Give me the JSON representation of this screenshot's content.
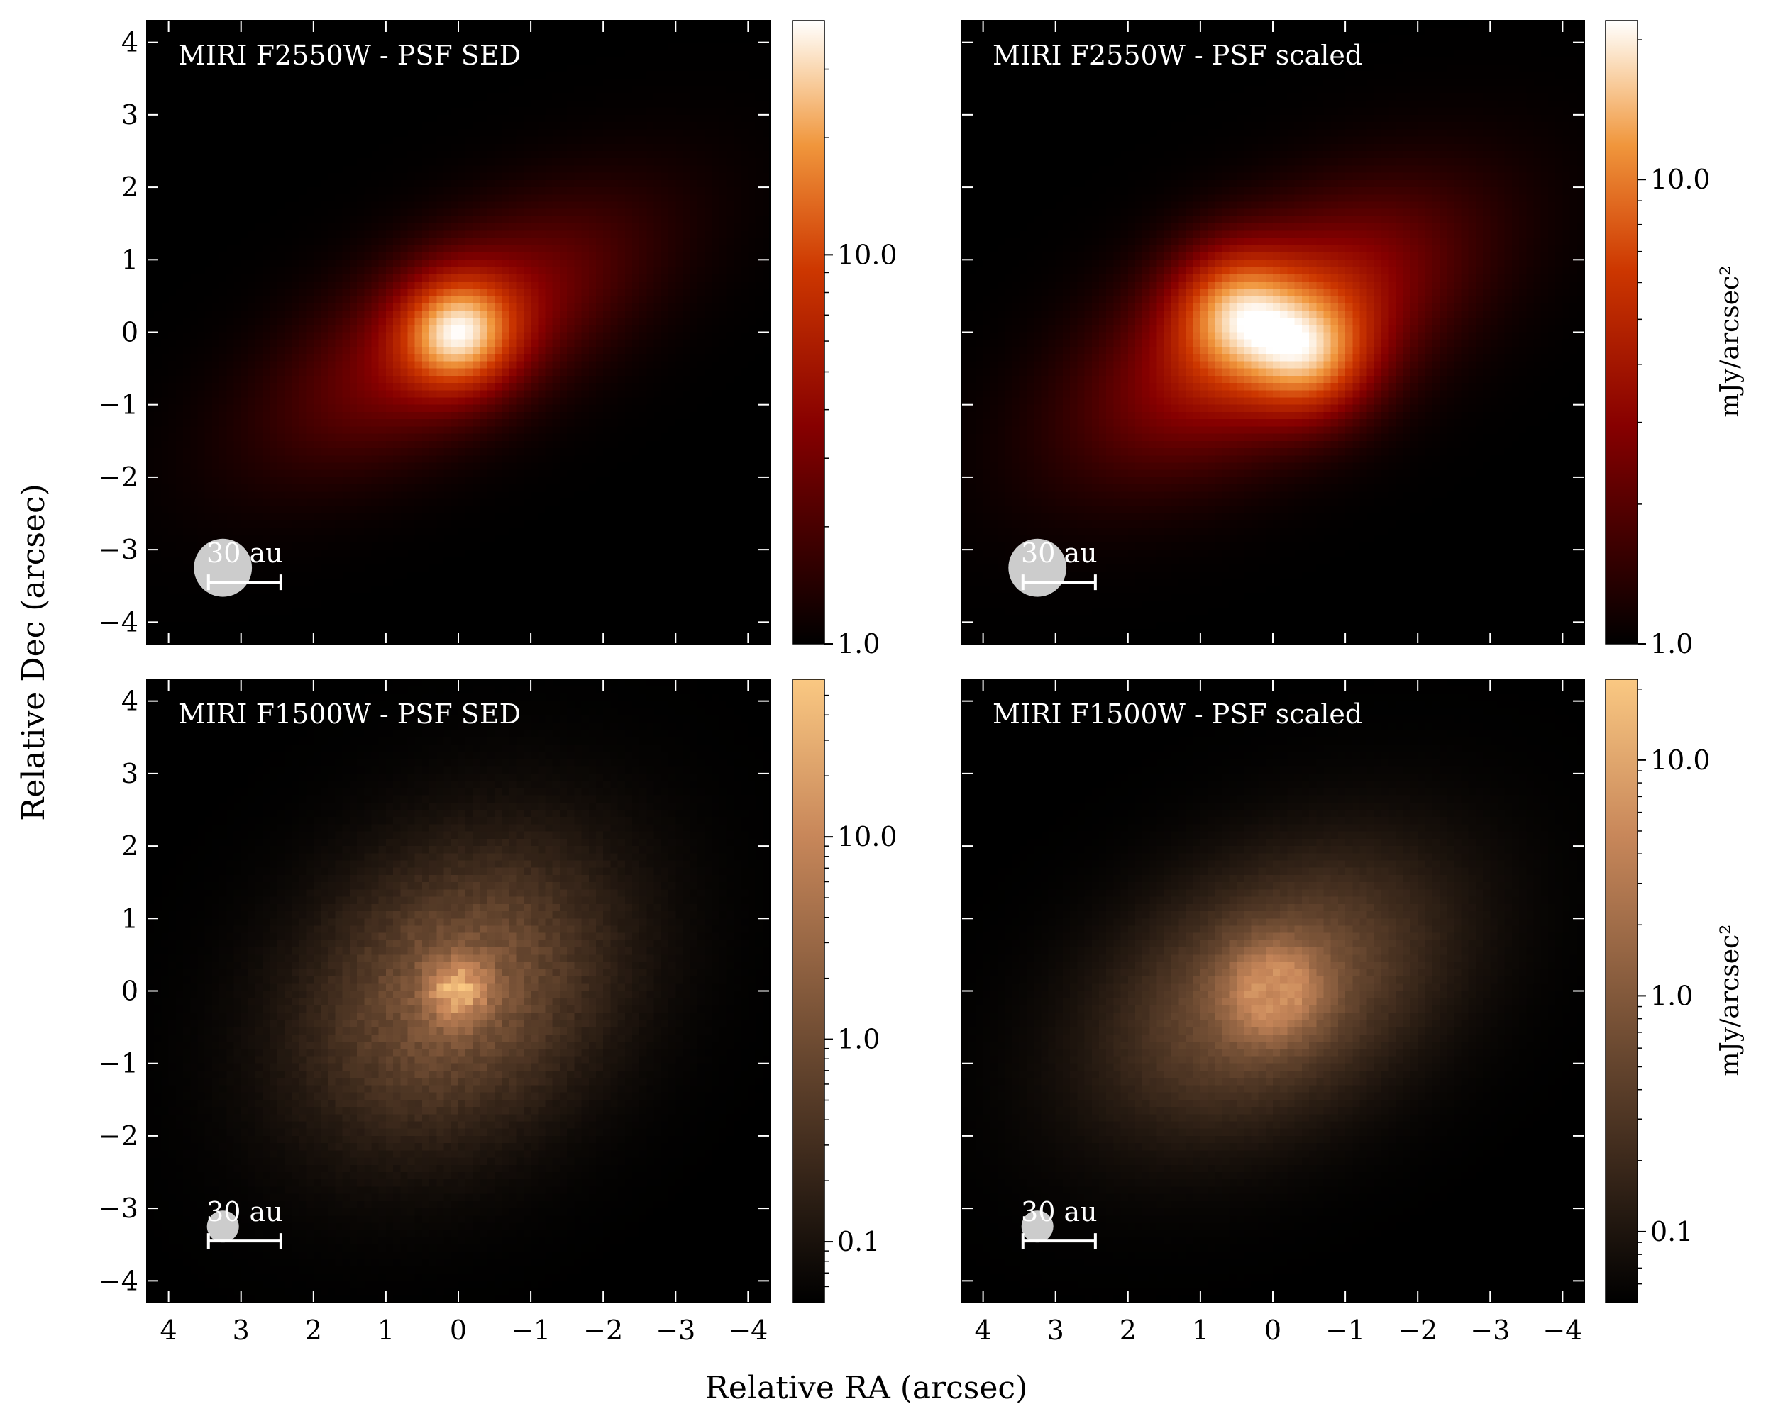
{
  "figure": {
    "xlabel": "Relative RA (arcsec)",
    "ylabel": "Relative Dec (arcsec)"
  },
  "chart_data": [
    {
      "type": "heatmap",
      "id": "f2550w-sed",
      "title": "MIRI F2550W - PSF SED",
      "xlim": [
        4.3,
        -4.3
      ],
      "ylim": [
        -4.3,
        4.3
      ],
      "xticks": [
        4,
        3,
        2,
        1,
        0,
        -1,
        -2,
        -3,
        -4
      ],
      "yticks": [
        -4,
        -3,
        -2,
        -1,
        0,
        1,
        2,
        3,
        4
      ],
      "show_xticklabels": false,
      "show_yticklabels": true,
      "colormap": "gist_heat",
      "image": {
        "disk": {
          "pa_deg": -30,
          "semi_major": 4.0,
          "semi_minor": 1.7,
          "peak": 0.4
        },
        "sources": [
          {
            "x": 0.0,
            "y": 0.0,
            "sigma": 0.55,
            "amp": 0.6
          }
        ]
      },
      "beam": {
        "x": 3.25,
        "y": -3.25,
        "radius": 0.4,
        "color": "#cccccc"
      },
      "scalebar": {
        "label": "30 au",
        "x_start": 2.45,
        "x_end": 3.45,
        "y": -3.45
      },
      "colorbar": {
        "scale": "log",
        "vmin": 1.0,
        "vmax": 40.0,
        "ticks": [
          1.0,
          10.0
        ],
        "ticklabels": [
          "1.0",
          "10.0"
        ],
        "label": ""
      }
    },
    {
      "type": "heatmap",
      "id": "f2550w-scaled",
      "title": "MIRI F2550W - PSF scaled",
      "xlim": [
        4.3,
        -4.3
      ],
      "ylim": [
        -4.3,
        4.3
      ],
      "xticks": [
        4,
        3,
        2,
        1,
        0,
        -1,
        -2,
        -3,
        -4
      ],
      "yticks": [
        -4,
        -3,
        -2,
        -1,
        0,
        1,
        2,
        3,
        4
      ],
      "show_xticklabels": false,
      "show_yticklabels": false,
      "colormap": "gist_heat",
      "image": {
        "disk": {
          "pa_deg": -30,
          "semi_major": 4.0,
          "semi_minor": 1.9,
          "peak": 0.55
        },
        "sources": [
          {
            "x": 0.55,
            "y": 0.35,
            "sigma": 0.6,
            "amp": 0.45
          },
          {
            "x": -0.55,
            "y": -0.35,
            "sigma": 0.6,
            "amp": 0.45
          }
        ]
      },
      "beam": {
        "x": 3.25,
        "y": -3.25,
        "radius": 0.4,
        "color": "#cccccc"
      },
      "scalebar": {
        "label": "30 au",
        "x_start": 2.45,
        "x_end": 3.45,
        "y": -3.45
      },
      "colorbar": {
        "scale": "log",
        "vmin": 1.0,
        "vmax": 22.0,
        "ticks": [
          1.0,
          10.0
        ],
        "ticklabels": [
          "1.0",
          "10.0"
        ],
        "label": "mJy/arcsec²"
      }
    },
    {
      "type": "heatmap",
      "id": "f1500w-sed",
      "title": "MIRI F1500W - PSF SED",
      "xlim": [
        4.3,
        -4.3
      ],
      "ylim": [
        -4.3,
        4.3
      ],
      "xticks": [
        4,
        3,
        2,
        1,
        0,
        -1,
        -2,
        -3,
        -4
      ],
      "yticks": [
        -4,
        -3,
        -2,
        -1,
        0,
        1,
        2,
        3,
        4
      ],
      "show_xticklabels": true,
      "show_yticklabels": true,
      "colormap": "copper",
      "image": {
        "disk": {
          "pa_deg": -40,
          "semi_major": 3.4,
          "semi_minor": 2.6,
          "peak": 0.5
        },
        "sources": [
          {
            "x": 0.0,
            "y": 0.0,
            "sigma": 0.3,
            "amp": 0.45
          }
        ],
        "noise": 0.12
      },
      "beam": {
        "x": 3.25,
        "y": -3.25,
        "radius": 0.22,
        "color": "#cccccc"
      },
      "scalebar": {
        "label": "30 au",
        "x_start": 2.45,
        "x_end": 3.45,
        "y": -3.45
      },
      "colorbar": {
        "scale": "log",
        "vmin": 0.05,
        "vmax": 60.0,
        "ticks": [
          0.1,
          1.0,
          10.0
        ],
        "ticklabels": [
          "0.1",
          "1.0",
          "10.0"
        ],
        "label": ""
      }
    },
    {
      "type": "heatmap",
      "id": "f1500w-scaled",
      "title": "MIRI F1500W - PSF scaled",
      "xlim": [
        4.3,
        -4.3
      ],
      "ylim": [
        -4.3,
        4.3
      ],
      "xticks": [
        4,
        3,
        2,
        1,
        0,
        -1,
        -2,
        -3,
        -4
      ],
      "yticks": [
        -4,
        -3,
        -2,
        -1,
        0,
        1,
        2,
        3,
        4
      ],
      "show_xticklabels": true,
      "show_yticklabels": false,
      "colormap": "copper",
      "image": {
        "disk": {
          "pa_deg": -30,
          "semi_major": 3.6,
          "semi_minor": 2.3,
          "peak": 0.5
        },
        "sources": [
          {
            "x": 0.0,
            "y": 0.0,
            "sigma": 0.45,
            "amp": 0.4,
            "ring": true
          }
        ],
        "noise": 0.06
      },
      "beam": {
        "x": 3.25,
        "y": -3.25,
        "radius": 0.22,
        "color": "#cccccc"
      },
      "scalebar": {
        "label": "30 au",
        "x_start": 2.45,
        "x_end": 3.45,
        "y": -3.45
      },
      "colorbar": {
        "scale": "log",
        "vmin": 0.05,
        "vmax": 22.0,
        "ticks": [
          0.1,
          1.0,
          10.0
        ],
        "ticklabels": [
          "0.1",
          "1.0",
          "10.0"
        ],
        "label": "mJy/arcsec²"
      }
    }
  ]
}
